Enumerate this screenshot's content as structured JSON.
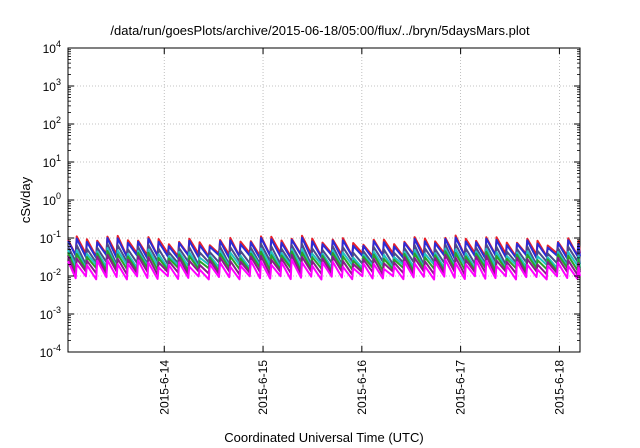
{
  "chart_data": {
    "type": "line",
    "title": "/data/run/goesPlots/archive/2015-06-18/05:00/flux/../bryn/5daysMars.plot",
    "xlabel": "Coordinated Universal Time (UTC)",
    "ylabel": "cSv/day",
    "yscale": "log",
    "grid": true,
    "ylim": [
      0.0001,
      10000
    ],
    "xlim": [
      "2015-06-13 00:37",
      "2015-06-18 05:00"
    ],
    "x_ticks": [
      {
        "value": "2015-06-14 00:00",
        "label": "2015-6-14"
      },
      {
        "value": "2015-06-15 00:00",
        "label": "2015-6-15"
      },
      {
        "value": "2015-06-16 00:00",
        "label": "2015-6-16"
      },
      {
        "value": "2015-06-17 00:00",
        "label": "2015-6-17"
      },
      {
        "value": "2015-06-18 00:00",
        "label": "2015-6-18"
      }
    ],
    "y_ticks": [
      {
        "value": 0.0001,
        "base": "10",
        "exp": "-4"
      },
      {
        "value": 0.001,
        "base": "10",
        "exp": "-3"
      },
      {
        "value": 0.01,
        "base": "10",
        "exp": "-2"
      },
      {
        "value": 0.1,
        "base": "10",
        "exp": "-1"
      },
      {
        "value": 1,
        "base": "10",
        "exp": "0"
      },
      {
        "value": 10,
        "base": "10",
        "exp": "1"
      },
      {
        "value": 100,
        "base": "10",
        "exp": "2"
      },
      {
        "value": 1000,
        "base": "10",
        "exp": "3"
      },
      {
        "value": 10000,
        "base": "10",
        "exp": "4"
      }
    ],
    "sawtooth": {
      "cycles": 50,
      "peak_times_approx": "about every 2.5 hours across the whole range"
    },
    "series": [
      {
        "color": "#e8202a",
        "peak": 0.09,
        "trough": 0.036
      },
      {
        "color": "#2b2bd6",
        "peak": 0.08,
        "trough": 0.032
      },
      {
        "color": "#4a4a8a",
        "peak": 0.055,
        "trough": 0.022
      },
      {
        "color": "#22c2c2",
        "peak": 0.042,
        "trough": 0.018
      },
      {
        "color": "#2aa02a",
        "peak": 0.035,
        "trough": 0.015
      },
      {
        "color": "#8a1a8a",
        "peak": 0.028,
        "trough": 0.012
      },
      {
        "color": "#ff00ff",
        "peak": 0.021,
        "trough": 0.009
      }
    ]
  }
}
